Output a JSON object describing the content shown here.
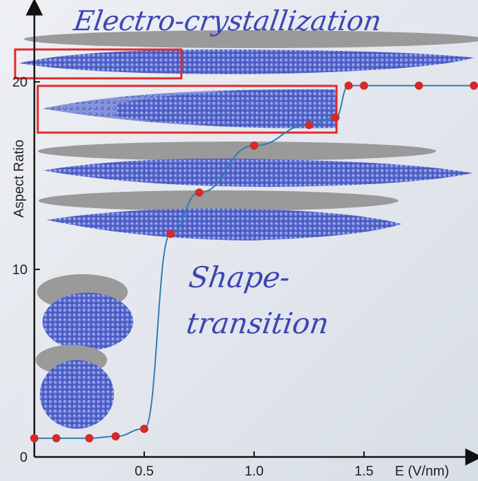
{
  "chart_data": {
    "type": "line",
    "title": "",
    "xlabel": "E (V/nm)",
    "ylabel": "Aspect Ratio",
    "xlim": [
      0,
      2.0
    ],
    "ylim": [
      0,
      24
    ],
    "xticks": [
      0.5,
      1.0,
      1.5
    ],
    "xtick_labels": [
      "0.5",
      "1.0",
      "1.5"
    ],
    "yticks": [
      0,
      10,
      20
    ],
    "ytick_labels": [
      "0",
      "10",
      "20"
    ],
    "grid": false,
    "legend": "none",
    "series": [
      {
        "color": "#2e7db0",
        "marker_color": "#d42a2a",
        "x": [
          0.0,
          0.1,
          0.25,
          0.37,
          0.5,
          0.62,
          0.75,
          1.0,
          1.25,
          1.37,
          1.43,
          1.5,
          1.75,
          2.0
        ],
        "y": [
          1.0,
          1.0,
          1.0,
          1.1,
          1.5,
          11.9,
          14.1,
          16.6,
          17.7,
          18.1,
          19.8,
          19.8,
          19.8,
          19.8
        ]
      }
    ],
    "annotations": [
      {
        "text": "Electro-crystallization",
        "color": "#3c46b4"
      },
      {
        "text": "Shape-",
        "color": "#3c46b4"
      },
      {
        "text": "transition",
        "color": "#3c46b4"
      }
    ],
    "highlight_color": "#e02a2a",
    "crystal_color": "#5566c8",
    "shadow_color": "#9a9a9a"
  }
}
